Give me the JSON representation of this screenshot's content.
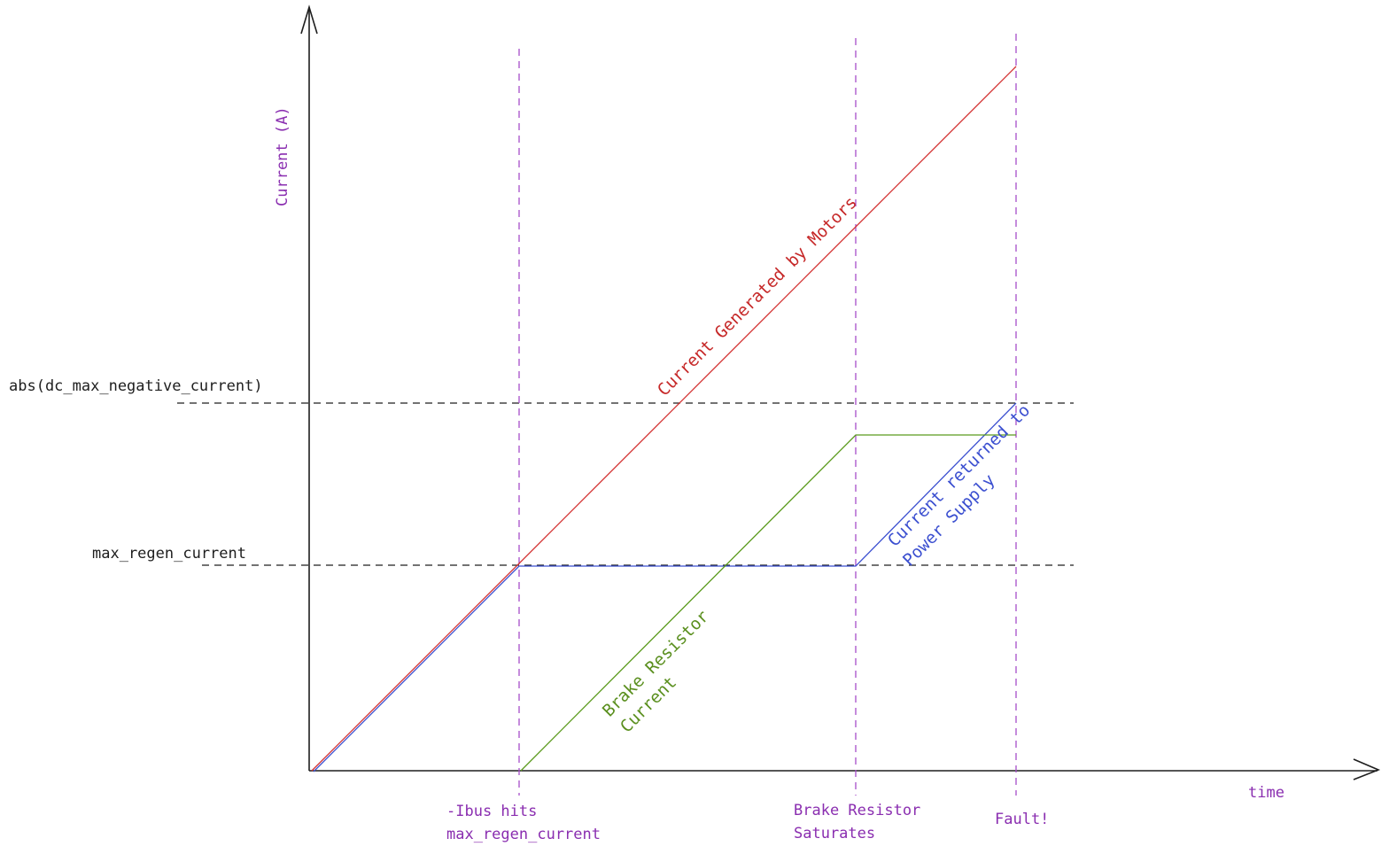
{
  "axes": {
    "y_label": "Current (A)",
    "x_label": "time"
  },
  "thresholds": {
    "abs_dc_max_negative_current": "abs(dc_max_negative_current)",
    "max_regen_current": "max_regen_current"
  },
  "events": {
    "ibus_hits_line1": "-Ibus hits",
    "ibus_hits_line2": "max_regen_current",
    "brake_saturates_line1": "Brake Resistor",
    "brake_saturates_line2": "Saturates",
    "fault": "Fault!"
  },
  "curves": {
    "motors": "Current Generated by Motors",
    "power_supply_line1": "Current returned to",
    "power_supply_line2": "Power Supply",
    "brake_line1": "Brake Resistor",
    "brake_line2": "Current"
  },
  "colors": {
    "axis": "#1e1e1e",
    "dashed_guides": "#a64dc9",
    "motors": "#d32f2f",
    "power_supply": "#3b4fd0",
    "brake_resistor": "#5a9a1c"
  }
}
